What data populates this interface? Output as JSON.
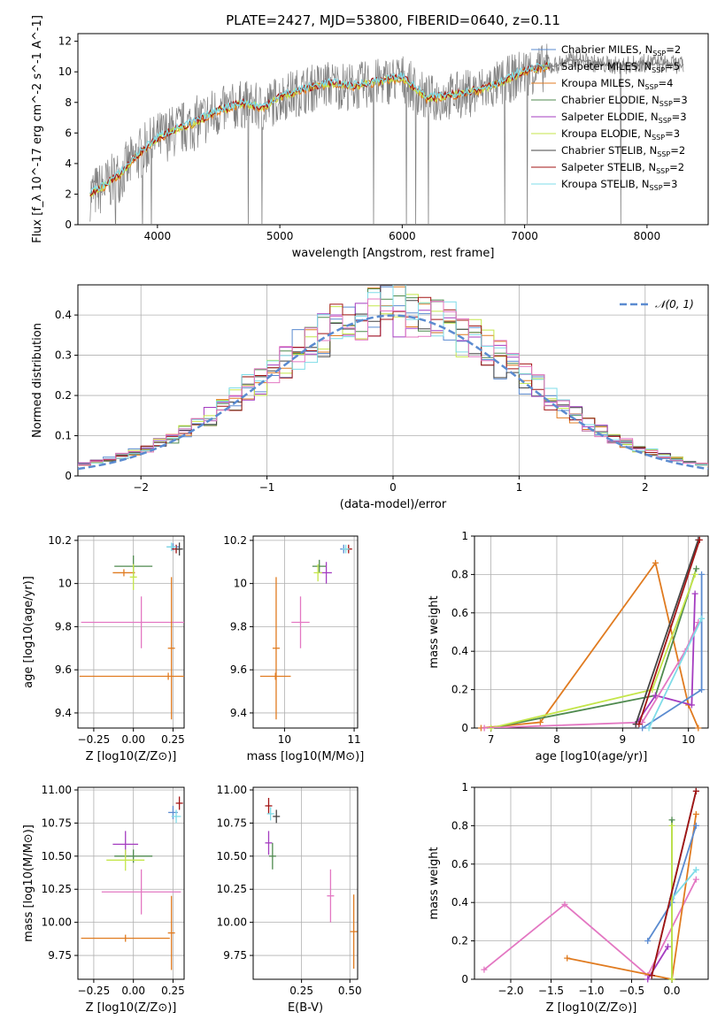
{
  "figure": {
    "title": "PLATE=2427, MJD=53800, FIBERID=0640, z=0.11"
  },
  "colors": {
    "chabrier_miles": "#5b8bd0",
    "salpeter_miles": "#7f7f7f",
    "kroupa_miles": "#e07b20",
    "chabrier_elodie": "#4f8a4f",
    "salpeter_elodie": "#a43cc0",
    "kroupa_elodie": "#c4e64a",
    "chabrier_stelib": "#444444",
    "salpeter_stelib": "#a31515",
    "kroupa_stelib": "#7fdce8",
    "pink": "#e377c2",
    "gaussian": "#5b8bd0"
  },
  "chart_data": [
    {
      "id": "spectrum",
      "type": "line",
      "xlabel": "wavelength [Angstrom, rest frame]",
      "ylabel": "Flux [f_λ 10^-17 erg cm^-2 s^-1 A^-1]",
      "xlim": [
        3350,
        8500
      ],
      "ylim": [
        0,
        12.5
      ],
      "xticks": [
        4000,
        5000,
        6000,
        7000,
        8000
      ],
      "yticks": [
        0,
        2,
        4,
        6,
        8,
        10,
        12
      ],
      "legend_position": "top-right",
      "grid": false,
      "legend": [
        {
          "label": "Chabrier MILES, N",
          "sub": "SSP",
          "suffix": "=2",
          "color_key": "chabrier_miles"
        },
        {
          "label": "Salpeter MILES, N",
          "sub": "SSP",
          "suffix": "=5",
          "color_key": "salpeter_miles"
        },
        {
          "label": "Kroupa MILES, N",
          "sub": "SSP",
          "suffix": "=4",
          "color_key": "kroupa_miles"
        },
        {
          "label": "Chabrier ELODIE, N",
          "sub": "SSP",
          "suffix": "=3",
          "color_key": "chabrier_elodie"
        },
        {
          "label": "Salpeter ELODIE, N",
          "sub": "SSP",
          "suffix": "=3",
          "color_key": "salpeter_elodie"
        },
        {
          "label": "Kroupa ELODIE, N",
          "sub": "SSP",
          "suffix": "=3",
          "color_key": "kroupa_elodie"
        },
        {
          "label": "Chabrier STELIB, N",
          "sub": "SSP",
          "suffix": "=2",
          "color_key": "chabrier_stelib"
        },
        {
          "label": "Salpeter STELIB, N",
          "sub": "SSP",
          "suffix": "=2",
          "color_key": "salpeter_stelib"
        },
        {
          "label": "Kroupa STELIB, N",
          "sub": "SSP",
          "suffix": "=3",
          "color_key": "kroupa_stelib"
        }
      ],
      "model_trend": {
        "x": [
          3450,
          3550,
          3700,
          3850,
          4000,
          4100,
          4300,
          4500,
          4700,
          4860,
          5000,
          5200,
          5400,
          5600,
          5800,
          6000,
          6200,
          6400,
          6600,
          6800,
          7000,
          7200
        ],
        "y": [
          2.0,
          2.4,
          3.3,
          4.6,
          5.6,
          6.0,
          6.6,
          7.4,
          7.9,
          7.6,
          8.3,
          8.8,
          9.2,
          9.0,
          9.3,
          9.6,
          8.2,
          8.4,
          8.7,
          9.2,
          10.0,
          10.3
        ]
      },
      "model_trend_late": {
        "x": [
          7200,
          7400,
          7600,
          7800,
          8000,
          8200,
          8300
        ],
        "y": [
          10.3,
          10.8,
          10.5,
          10.4,
          10.6,
          10.5,
          10.4
        ]
      }
    },
    {
      "id": "residuals",
      "type": "line",
      "xlabel": "(data-model)/error",
      "ylabel": "Normed distribution",
      "xlim": [
        -2.5,
        2.5
      ],
      "ylim": [
        0,
        0.475
      ],
      "xticks": [
        -2,
        -1,
        0,
        1,
        2
      ],
      "yticks": [
        0.0,
        0.1,
        0.2,
        0.3,
        0.4
      ],
      "grid": true,
      "legend_position": "top-right",
      "legend": [
        {
          "label": "𝒩(0, 1)",
          "color_key": "gaussian",
          "style": "dashed"
        }
      ],
      "bin_width": 0.1,
      "gaussian": {
        "mu": 0,
        "sigma": 1
      }
    },
    {
      "id": "age_vs_Z",
      "type": "scatter",
      "xlabel": "Z [log10(Z/Z⊙)]",
      "ylabel": "age [log10(age/yr)]",
      "xlim": [
        -0.35,
        0.32
      ],
      "ylim": [
        9.33,
        10.22
      ],
      "xticks": [
        -0.25,
        0.0,
        0.25
      ],
      "xticklabels": [
        "−0.25",
        "0.00",
        "0.25"
      ],
      "yticks": [
        9.4,
        9.6,
        9.8,
        10.0,
        10.2
      ],
      "grid": true,
      "points": [
        {
          "x": 0.0,
          "y": 10.08,
          "ex": 0.12,
          "ey": 0.05,
          "color_key": "chabrier_elodie"
        },
        {
          "x": -0.06,
          "y": 10.05,
          "ex": 0.07,
          "ey": 0.0,
          "color_key": "kroupa_miles"
        },
        {
          "x": 0.0,
          "y": 10.03,
          "ex": 0.0,
          "ey": 0.06,
          "color_key": "kroupa_elodie"
        },
        {
          "x": 0.25,
          "y": 10.17,
          "ex": 0.04,
          "ey": 0.0,
          "color_key": "chabrier_miles"
        },
        {
          "x": 0.27,
          "y": 10.16,
          "ex": 0.03,
          "ey": 0.02,
          "color_key": "salpeter_stelib"
        },
        {
          "x": 0.24,
          "y": 10.17,
          "ex": 0.03,
          "ey": 0.02,
          "color_key": "kroupa_stelib"
        },
        {
          "x": 0.29,
          "y": 10.16,
          "ex": 0.0,
          "ey": 0.03,
          "color_key": "chabrier_stelib"
        },
        {
          "x": 0.05,
          "y": 9.82,
          "ex": 0.38,
          "ey": 0.12,
          "color_key": "pink"
        },
        {
          "x": 0.22,
          "y": 9.57,
          "ex": 0.56,
          "ey": 0.0,
          "color_key": "kroupa_miles"
        },
        {
          "x": 0.24,
          "y": 9.7,
          "ex": 0.0,
          "ey": 0.33,
          "color_key": "kroupa_miles"
        }
      ]
    },
    {
      "id": "age_vs_mass",
      "type": "scatter",
      "xlabel": "mass [log10(M/M⊙)]",
      "ylabel": "",
      "xlim": [
        9.55,
        11.05
      ],
      "ylim": [
        9.33,
        10.22
      ],
      "xticks": [
        10,
        11
      ],
      "yticks": [
        9.4,
        9.6,
        9.8,
        10.0,
        10.2
      ],
      "grid": true,
      "points": [
        {
          "x": 10.5,
          "y": 10.08,
          "ex": 0.1,
          "ey": 0.03,
          "color_key": "chabrier_elodie"
        },
        {
          "x": 10.6,
          "y": 10.05,
          "ex": 0.08,
          "ey": 0.05,
          "color_key": "salpeter_elodie"
        },
        {
          "x": 10.48,
          "y": 10.05,
          "ex": 0.06,
          "ey": 0.04,
          "color_key": "kroupa_elodie"
        },
        {
          "x": 10.85,
          "y": 10.16,
          "ex": 0.02,
          "ey": 0.02,
          "color_key": "chabrier_miles"
        },
        {
          "x": 10.92,
          "y": 10.16,
          "ex": 0.02,
          "ey": 0.02,
          "color_key": "salpeter_stelib"
        },
        {
          "x": 10.88,
          "y": 10.16,
          "ex": 0.02,
          "ey": 0.02,
          "color_key": "kroupa_stelib"
        },
        {
          "x": 10.23,
          "y": 9.82,
          "ex": 0.13,
          "ey": 0.12,
          "color_key": "pink"
        },
        {
          "x": 9.87,
          "y": 9.57,
          "ex": 0.22,
          "ey": 0.0,
          "color_key": "kroupa_miles"
        },
        {
          "x": 9.88,
          "y": 9.7,
          "ex": 0.0,
          "ey": 0.33,
          "color_key": "kroupa_miles"
        }
      ]
    },
    {
      "id": "massweight_vs_age",
      "type": "line",
      "xlabel": "age [log10(age/yr)]",
      "ylabel": "mass weight",
      "xlim": [
        6.75,
        10.3
      ],
      "ylim": [
        0,
        1.0
      ],
      "xticks": [
        7,
        8,
        9,
        10
      ],
      "yticks": [
        0.0,
        0.2,
        0.4,
        0.6,
        0.8,
        1.0
      ],
      "grid": true,
      "series": [
        {
          "color_key": "kroupa_miles",
          "x": [
            6.85,
            7.75,
            9.5,
            10.0,
            10.15
          ],
          "y": [
            0.0,
            0.03,
            0.86,
            0.12,
            0.0
          ]
        },
        {
          "color_key": "chabrier_elodie",
          "x": [
            7.0,
            9.5,
            10.12
          ],
          "y": [
            0.0,
            0.17,
            0.83
          ]
        },
        {
          "color_key": "kroupa_elodie",
          "x": [
            7.0,
            9.45,
            10.1
          ],
          "y": [
            0.0,
            0.2,
            0.8
          ]
        },
        {
          "color_key": "salpeter_elodie",
          "x": [
            9.2,
            9.5,
            10.05,
            10.1
          ],
          "y": [
            0.02,
            0.17,
            0.12,
            0.7
          ]
        },
        {
          "color_key": "pink",
          "x": [
            6.9,
            9.3,
            9.95,
            10.15
          ],
          "y": [
            0.0,
            0.03,
            0.4,
            0.55
          ]
        },
        {
          "color_key": "chabrier_miles",
          "x": [
            9.3,
            10.2,
            10.2
          ],
          "y": [
            0.0,
            0.2,
            0.8
          ]
        },
        {
          "color_key": "kroupa_stelib",
          "x": [
            9.4,
            10.2
          ],
          "y": [
            0.0,
            0.57
          ]
        },
        {
          "color_key": "chabrier_stelib",
          "x": [
            9.2,
            10.15
          ],
          "y": [
            0.02,
            0.98
          ]
        },
        {
          "color_key": "salpeter_stelib",
          "x": [
            9.25,
            10.17
          ],
          "y": [
            0.02,
            0.98
          ]
        }
      ]
    },
    {
      "id": "mass_vs_Z",
      "type": "scatter",
      "xlabel": "Z [log10(Z/Z⊙)]",
      "ylabel": "mass [log10(M/M⊙)]",
      "xlim": [
        -0.35,
        0.32
      ],
      "ylim": [
        9.57,
        11.02
      ],
      "xticks": [
        -0.25,
        0.0,
        0.25
      ],
      "xticklabels": [
        "−0.25",
        "0.00",
        "0.25"
      ],
      "yticks": [
        9.75,
        10.0,
        10.25,
        10.5,
        10.75,
        11.0
      ],
      "yticklabels": [
        "9.75",
        "10.00",
        "10.25",
        "10.50",
        "10.75",
        "11.00"
      ],
      "grid": true,
      "points": [
        {
          "x": -0.05,
          "y": 10.59,
          "ex": 0.08,
          "ey": 0.1,
          "color_key": "salpeter_elodie"
        },
        {
          "x": 0.0,
          "y": 10.5,
          "ex": 0.12,
          "ey": 0.05,
          "color_key": "chabrier_elodie"
        },
        {
          "x": -0.05,
          "y": 10.47,
          "ex": 0.12,
          "ey": 0.08,
          "color_key": "kroupa_elodie"
        },
        {
          "x": 0.25,
          "y": 10.83,
          "ex": 0.03,
          "ey": 0.05,
          "color_key": "chabrier_miles"
        },
        {
          "x": 0.29,
          "y": 10.9,
          "ex": 0.02,
          "ey": 0.05,
          "color_key": "salpeter_stelib"
        },
        {
          "x": 0.27,
          "y": 10.8,
          "ex": 0.03,
          "ey": 0.05,
          "color_key": "kroupa_stelib"
        },
        {
          "x": 0.05,
          "y": 10.23,
          "ex": 0.25,
          "ey": 0.17,
          "color_key": "pink"
        },
        {
          "x": -0.05,
          "y": 9.88,
          "ex": 0.28,
          "ey": 0.0,
          "color_key": "kroupa_miles"
        },
        {
          "x": 0.24,
          "y": 9.92,
          "ex": 0.0,
          "ey": 0.28,
          "color_key": "kroupa_miles"
        }
      ]
    },
    {
      "id": "mass_vs_ebv",
      "type": "scatter",
      "xlabel": "E(B-V)",
      "ylabel": "",
      "xlim": [
        0.0,
        0.54
      ],
      "ylim": [
        9.57,
        11.02
      ],
      "xticks": [
        0.25,
        0.5
      ],
      "xticklabels": [
        "0.25",
        "0.50"
      ],
      "yticks": [
        9.75,
        10.0,
        10.25,
        10.5,
        10.75,
        11.0
      ],
      "yticklabels": [
        "9.75",
        "10.00",
        "10.25",
        "10.50",
        "10.75",
        "11.00"
      ],
      "grid": true,
      "points": [
        {
          "x": 0.08,
          "y": 10.88,
          "ex": 0.0,
          "ey": 0.06,
          "color_key": "salpeter_stelib"
        },
        {
          "x": 0.12,
          "y": 10.8,
          "ex": 0.0,
          "ey": 0.05,
          "color_key": "chabrier_stelib"
        },
        {
          "x": 0.09,
          "y": 10.82,
          "ex": 0.0,
          "ey": 0.05,
          "color_key": "kroupa_stelib"
        },
        {
          "x": 0.08,
          "y": 10.6,
          "ex": 0.0,
          "ey": 0.09,
          "color_key": "salpeter_elodie"
        },
        {
          "x": 0.1,
          "y": 10.5,
          "ex": 0.0,
          "ey": 0.1,
          "color_key": "chabrier_elodie"
        },
        {
          "x": 0.4,
          "y": 10.2,
          "ex": 0.0,
          "ey": 0.2,
          "color_key": "pink"
        },
        {
          "x": 0.52,
          "y": 9.93,
          "ex": 0.0,
          "ey": 0.28,
          "color_key": "kroupa_miles"
        }
      ]
    },
    {
      "id": "massweight_vs_Z",
      "type": "line",
      "xlabel": "Z [log10(Z/Z⊙)]",
      "ylabel": "mass weight",
      "xlim": [
        -2.45,
        0.45
      ],
      "ylim": [
        0,
        1.0
      ],
      "xticks": [
        -2.0,
        -1.5,
        -1.0,
        -0.5,
        0.0
      ],
      "xticklabels": [
        "−2.0",
        "−1.5",
        "−1.0",
        "−0.5",
        "0.0"
      ],
      "yticks": [
        0.0,
        0.2,
        0.4,
        0.6,
        0.8,
        1.0
      ],
      "grid": true,
      "series": [
        {
          "color_key": "pink",
          "x": [
            -2.33,
            -1.33,
            -0.3,
            0.3
          ],
          "y": [
            0.05,
            0.39,
            0.02,
            0.52
          ]
        },
        {
          "color_key": "kroupa_miles",
          "x": [
            -1.3,
            0.0,
            0.3
          ],
          "y": [
            0.11,
            0.0,
            0.86
          ]
        },
        {
          "color_key": "chabrier_miles",
          "x": [
            -0.3,
            0.0,
            0.3
          ],
          "y": [
            0.2,
            0.4,
            0.8
          ]
        },
        {
          "color_key": "kroupa_stelib",
          "x": [
            0.0,
            0.3
          ],
          "y": [
            0.42,
            0.57
          ]
        },
        {
          "color_key": "chabrier_elodie",
          "x": [
            0.0,
            0.0
          ],
          "y": [
            0.0,
            0.83
          ]
        },
        {
          "color_key": "kroupa_elodie",
          "x": [
            0.0,
            0.0
          ],
          "y": [
            0.0,
            0.8
          ]
        },
        {
          "color_key": "salpeter_elodie",
          "x": [
            -0.3,
            -0.05
          ],
          "y": [
            0.0,
            0.17
          ]
        },
        {
          "color_key": "chabrier_stelib",
          "x": [
            -0.25,
            0.3
          ],
          "y": [
            0.02,
            0.98
          ]
        },
        {
          "color_key": "salpeter_stelib",
          "x": [
            -0.25,
            0.3
          ],
          "y": [
            0.02,
            0.98
          ]
        }
      ]
    }
  ]
}
